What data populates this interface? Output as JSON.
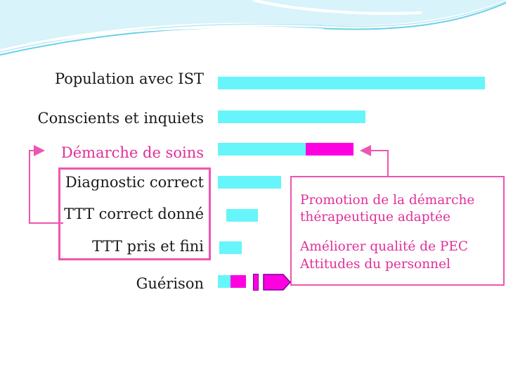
{
  "funnel": {
    "steps": [
      {
        "label": "Population avec IST",
        "value": 100
      },
      {
        "label": "Conscients et inquiets",
        "value": 55
      },
      {
        "label": "Démarche de soins",
        "value": 33
      },
      {
        "label": "Diagnostic correct",
        "value": 24
      },
      {
        "label": "TTT correct donné",
        "value": 15
      },
      {
        "label": "TTT pris et fini",
        "value": 9
      },
      {
        "label": "Guérison",
        "value": 5
      }
    ]
  },
  "promotion_box": {
    "line1": "Promotion de la démarche",
    "line2": "thérapeutique adaptée",
    "line3": "Améliorer qualité de PEC",
    "line4": "Attitudes du personnel"
  },
  "colors": {
    "bar": "#66f5fa",
    "accent": "#ff00e0",
    "frame": "#ee55b0",
    "highlight_text": "#e0309a"
  }
}
